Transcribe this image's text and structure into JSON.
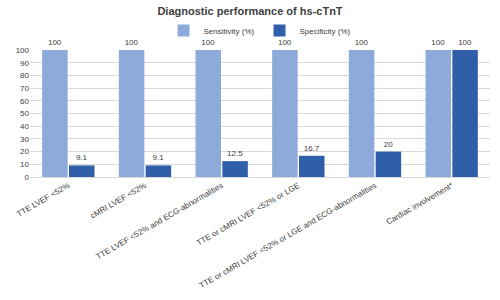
{
  "chart_data": {
    "type": "bar",
    "title": "Diagnostic performance of hs-cTnT",
    "categories": [
      "TTE LVEF <52%",
      "cMRI LVEF <52%",
      "TTE LVEF <52% and ECG-abnormalities",
      "TTE or cMRI LVEF <52% or LGE",
      "TTE or cMRI LVEF <52% or LGE and ECG-abnormalities",
      "Cardiac involvement*"
    ],
    "series": [
      {
        "name": "Sensitivity (%)",
        "color": "#8eaadb",
        "values": [
          100,
          100,
          100,
          100,
          100,
          100
        ]
      },
      {
        "name": "Specificity (%)",
        "color": "#2f5fa8",
        "values": [
          9.1,
          9.1,
          12.5,
          16.7,
          20,
          100
        ]
      }
    ],
    "ylim": [
      0,
      100
    ],
    "yticks": [
      0,
      10,
      20,
      30,
      40,
      50,
      60,
      70,
      80,
      90,
      100
    ],
    "grid": true,
    "legend": "top",
    "data_labels": true
  }
}
